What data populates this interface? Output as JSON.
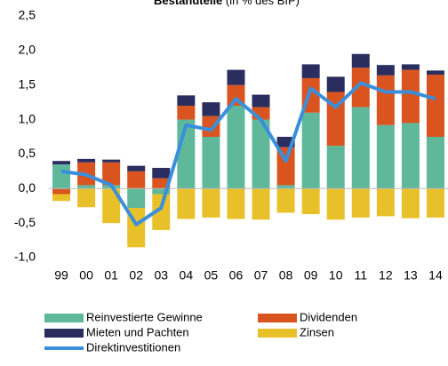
{
  "chart_data": {
    "type": "stacked-bar-line",
    "title": "Bestandteile",
    "subtitle": "(in % des BIP)",
    "categories": [
      "99",
      "00",
      "01",
      "02",
      "03",
      "04",
      "05",
      "06",
      "07",
      "08",
      "09",
      "10",
      "11",
      "12",
      "13",
      "14"
    ],
    "series": [
      {
        "name": "Reinvestierte Gewinne",
        "color": "#5fb89a",
        "kind": "bar",
        "values": [
          0.35,
          0.05,
          0.05,
          -0.28,
          -0.08,
          1.0,
          0.75,
          1.2,
          1.0,
          0.05,
          1.1,
          0.62,
          1.18,
          0.92,
          0.95,
          0.75
        ]
      },
      {
        "name": "Dividenden",
        "color": "#d9541e",
        "kind": "bar",
        "values": [
          -0.08,
          0.33,
          0.33,
          0.25,
          0.15,
          0.2,
          0.3,
          0.3,
          0.18,
          0.55,
          0.5,
          0.78,
          0.57,
          0.72,
          0.77,
          0.9
        ]
      },
      {
        "name": "Mieten und Pachten",
        "color": "#2a2e5e",
        "kind": "bar",
        "values": [
          0.05,
          0.05,
          0.04,
          0.08,
          0.15,
          0.15,
          0.2,
          0.22,
          0.18,
          0.15,
          0.2,
          0.22,
          0.2,
          0.15,
          0.08,
          0.06
        ]
      },
      {
        "name": "Zinsen",
        "color": "#e8c12a",
        "kind": "bar",
        "values": [
          -0.1,
          -0.27,
          -0.5,
          -0.57,
          -0.52,
          -0.44,
          -0.42,
          -0.44,
          -0.45,
          -0.35,
          -0.37,
          -0.45,
          -0.42,
          -0.4,
          -0.43,
          -0.42
        ]
      },
      {
        "name": "Direktinvestitionen",
        "color": "#3a8fdc",
        "kind": "line",
        "values": [
          0.25,
          0.2,
          0.05,
          -0.52,
          -0.28,
          0.92,
          0.85,
          1.3,
          1.0,
          0.4,
          1.45,
          1.18,
          1.53,
          1.4,
          1.4,
          1.3
        ]
      }
    ],
    "ylim": [
      -1,
      2.5
    ],
    "yticks": [
      {
        "value": -1,
        "label": "-1,0"
      },
      {
        "value": -0.5,
        "label": "-0,5"
      },
      {
        "value": 0,
        "label": "0,0"
      },
      {
        "value": 0.5,
        "label": "0,5"
      },
      {
        "value": 1,
        "label": "1,0"
      },
      {
        "value": 1.5,
        "label": "1,5"
      },
      {
        "value": 2,
        "label": "2,0"
      },
      {
        "value": 2.5,
        "label": "2,5"
      }
    ],
    "legend": "bottom"
  }
}
